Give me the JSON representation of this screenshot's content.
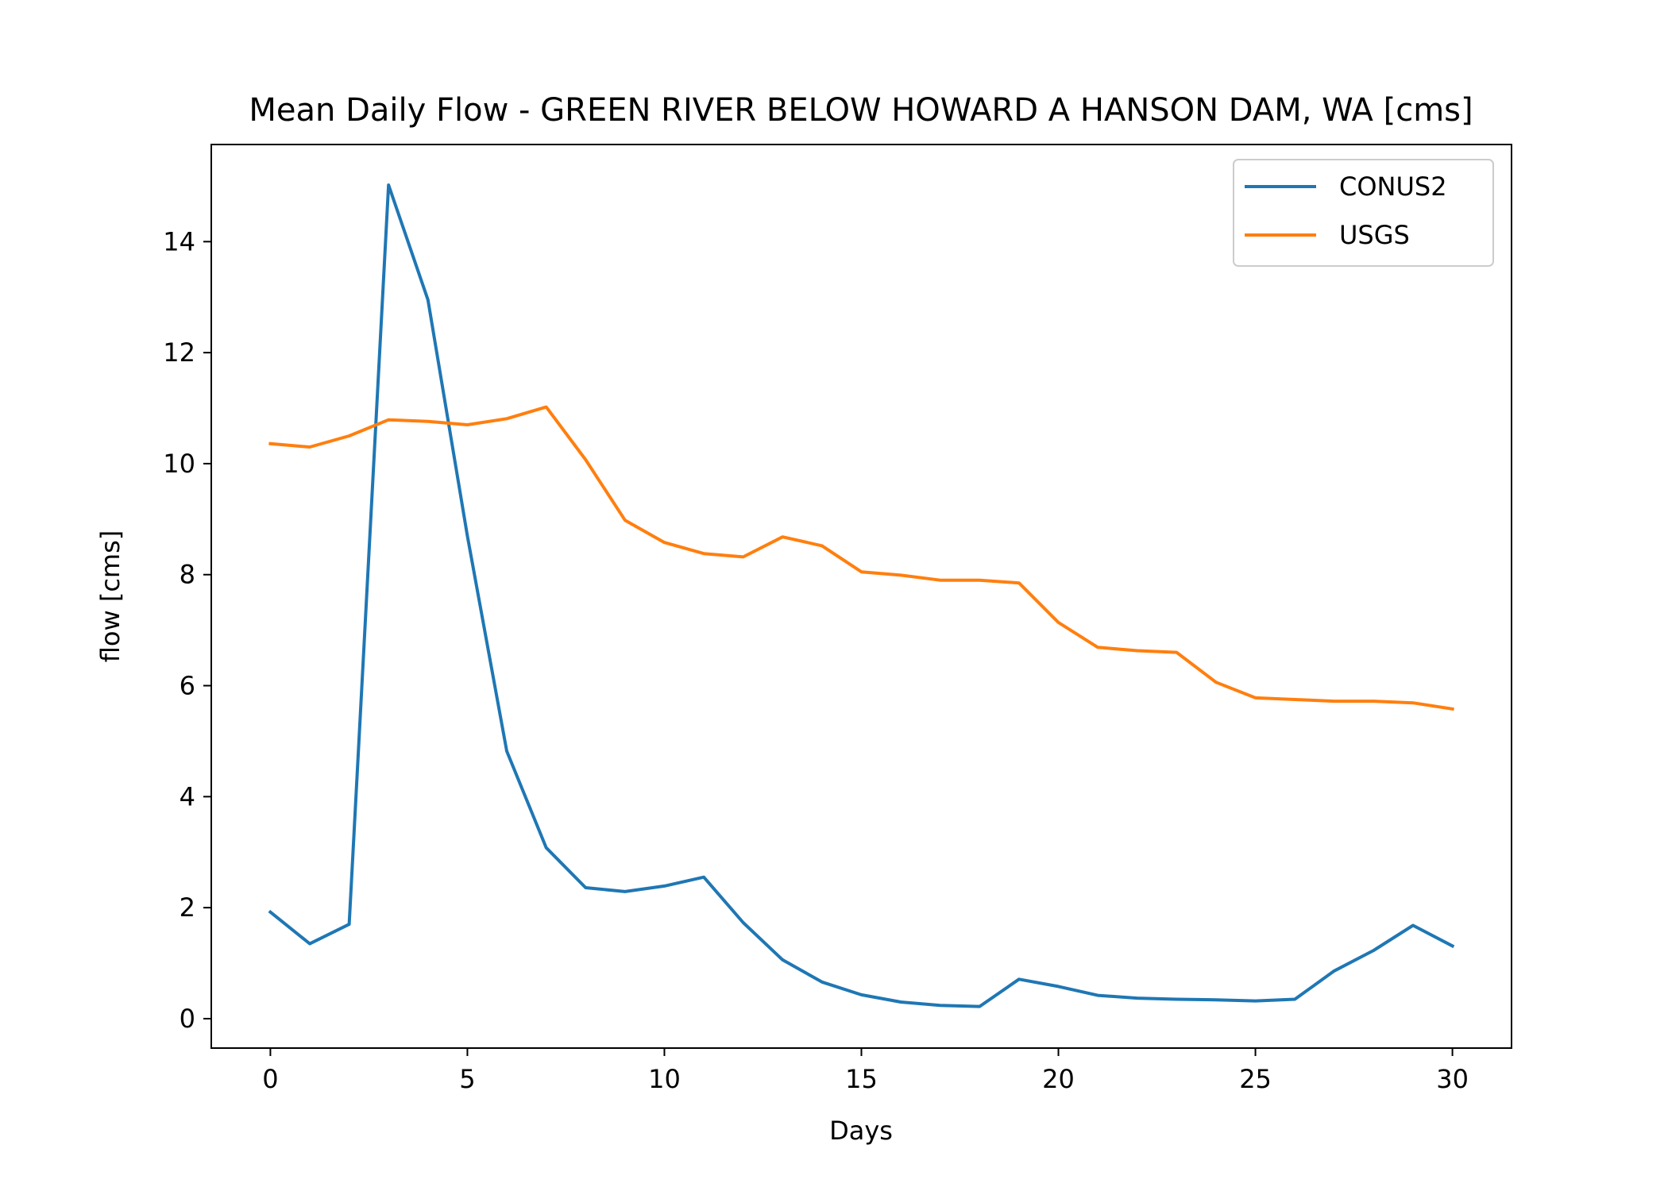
{
  "chart_data": {
    "type": "line",
    "title": "Mean Daily Flow - GREEN RIVER BELOW HOWARD A HANSON DAM, WA [cms]",
    "xlabel": "Days",
    "ylabel": "flow [cms]",
    "xlim": [
      -1.5,
      31.5
    ],
    "ylim": [
      -0.53,
      15.75
    ],
    "xticks": [
      0,
      5,
      10,
      15,
      20,
      25,
      30
    ],
    "yticks": [
      0,
      2,
      4,
      6,
      8,
      10,
      12,
      14
    ],
    "grid": false,
    "legend_position": "top-right",
    "x": [
      0,
      1,
      2,
      3,
      4,
      5,
      6,
      7,
      8,
      9,
      10,
      11,
      12,
      13,
      14,
      15,
      16,
      17,
      18,
      19,
      20,
      21,
      22,
      23,
      24,
      25,
      26,
      27,
      28,
      29,
      30
    ],
    "series": [
      {
        "name": "CONUS2",
        "color": "#1f77b4",
        "values": [
          1.92,
          1.35,
          1.7,
          15.02,
          12.95,
          8.7,
          4.82,
          3.08,
          2.36,
          2.29,
          2.39,
          2.55,
          1.73,
          1.06,
          0.66,
          0.43,
          0.3,
          0.24,
          0.22,
          0.71,
          0.58,
          0.42,
          0.37,
          0.35,
          0.34,
          0.32,
          0.35,
          0.86,
          1.23,
          1.68,
          1.31
        ]
      },
      {
        "name": "USGS",
        "color": "#ff7f0e",
        "values": [
          10.36,
          10.3,
          10.5,
          10.79,
          10.76,
          10.7,
          10.81,
          11.02,
          10.07,
          8.98,
          8.58,
          8.38,
          8.32,
          8.68,
          8.52,
          8.05,
          7.99,
          7.9,
          7.9,
          7.85,
          7.14,
          6.69,
          6.63,
          6.6,
          6.06,
          5.78,
          5.75,
          5.72,
          5.72,
          5.69,
          5.58
        ]
      }
    ]
  }
}
